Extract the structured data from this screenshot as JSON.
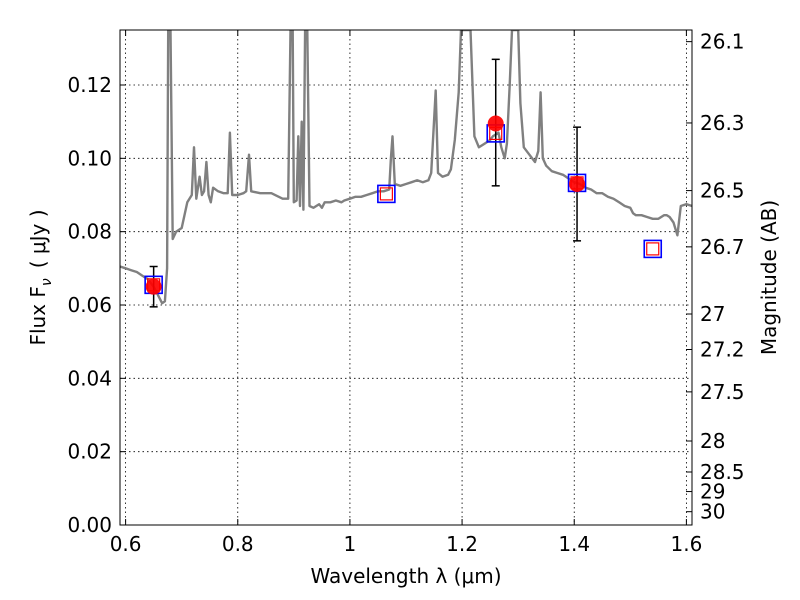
{
  "chart_data": {
    "type": "scatter",
    "xlabel": "Wavelength  λ (μm)",
    "ylabel": "Flux  F",
    "ylabel_sub": "ν",
    "ylabel_unit": "(  μJy )",
    "y2label": "Magnitude (AB)",
    "xlim": [
      0.59,
      1.61
    ],
    "ylim": [
      0.0,
      0.135
    ],
    "grid": true,
    "x_ticks": [
      {
        "value": 0.6,
        "label": "0.6"
      },
      {
        "value": 0.8,
        "label": "0.8"
      },
      {
        "value": 1.0,
        "label": "1"
      },
      {
        "value": 1.2,
        "label": "1.2"
      },
      {
        "value": 1.4,
        "label": "1.4"
      },
      {
        "value": 1.6,
        "label": "1.6"
      }
    ],
    "y_ticks": [
      {
        "value": 0.0,
        "label": "0.00"
      },
      {
        "value": 0.02,
        "label": "0.02"
      },
      {
        "value": 0.04,
        "label": "0.04"
      },
      {
        "value": 0.06,
        "label": "0.06"
      },
      {
        "value": 0.08,
        "label": "0.08"
      },
      {
        "value": 0.1,
        "label": "0.10"
      },
      {
        "value": 0.12,
        "label": "0.12"
      }
    ],
    "y2_ticks": [
      {
        "value": 26.1,
        "label": "26.1"
      },
      {
        "value": 26.3,
        "label": "26.3"
      },
      {
        "value": 26.5,
        "label": "26.5"
      },
      {
        "value": 26.7,
        "label": "26.7"
      },
      {
        "value": 27.0,
        "label": "27"
      },
      {
        "value": 27.2,
        "label": "27.2"
      },
      {
        "value": 27.5,
        "label": "27.5"
      },
      {
        "value": 28.0,
        "label": "28"
      },
      {
        "value": 28.5,
        "label": "28.5"
      },
      {
        "value": 29.0,
        "label": "29"
      },
      {
        "value": 30.0,
        "label": "30"
      }
    ],
    "spectrum": {
      "color": "#808080",
      "points": [
        [
          0.59,
          0.0705
        ],
        [
          0.6,
          0.07
        ],
        [
          0.61,
          0.0695
        ],
        [
          0.62,
          0.069
        ],
        [
          0.63,
          0.068
        ],
        [
          0.64,
          0.067
        ],
        [
          0.65,
          0.065
        ],
        [
          0.66,
          0.062
        ],
        [
          0.665,
          0.0605
        ],
        [
          0.67,
          0.061
        ],
        [
          0.674,
          0.07
        ],
        [
          0.676,
          0.135
        ],
        [
          0.68,
          0.135
        ],
        [
          0.684,
          0.078
        ],
        [
          0.69,
          0.08
        ],
        [
          0.7,
          0.081
        ],
        [
          0.71,
          0.088
        ],
        [
          0.718,
          0.09
        ],
        [
          0.722,
          0.103
        ],
        [
          0.726,
          0.089
        ],
        [
          0.732,
          0.095
        ],
        [
          0.736,
          0.09
        ],
        [
          0.74,
          0.091
        ],
        [
          0.744,
          0.099
        ],
        [
          0.748,
          0.09
        ],
        [
          0.752,
          0.088
        ],
        [
          0.756,
          0.092
        ],
        [
          0.765,
          0.091
        ],
        [
          0.775,
          0.0905
        ],
        [
          0.782,
          0.0905
        ],
        [
          0.786,
          0.107
        ],
        [
          0.79,
          0.09
        ],
        [
          0.8,
          0.09
        ],
        [
          0.81,
          0.0905
        ],
        [
          0.815,
          0.091
        ],
        [
          0.82,
          0.101
        ],
        [
          0.824,
          0.091
        ],
        [
          0.84,
          0.0905
        ],
        [
          0.86,
          0.0905
        ],
        [
          0.88,
          0.089
        ],
        [
          0.89,
          0.089
        ],
        [
          0.894,
          0.135
        ],
        [
          0.898,
          0.135
        ],
        [
          0.9,
          0.088
        ],
        [
          0.905,
          0.0885
        ],
        [
          0.908,
          0.106
        ],
        [
          0.911,
          0.087
        ],
        [
          0.914,
          0.11
        ],
        [
          0.917,
          0.086
        ],
        [
          0.92,
          0.135
        ],
        [
          0.924,
          0.135
        ],
        [
          0.928,
          0.087
        ],
        [
          0.935,
          0.0865
        ],
        [
          0.945,
          0.0875
        ],
        [
          0.95,
          0.0865
        ],
        [
          0.955,
          0.088
        ],
        [
          0.965,
          0.088
        ],
        [
          0.975,
          0.0885
        ],
        [
          0.985,
          0.088
        ],
        [
          0.99,
          0.0885
        ],
        [
          1.0,
          0.089
        ],
        [
          1.01,
          0.0895
        ],
        [
          1.02,
          0.0895
        ],
        [
          1.03,
          0.09
        ],
        [
          1.04,
          0.0905
        ],
        [
          1.05,
          0.091
        ],
        [
          1.06,
          0.091
        ],
        [
          1.07,
          0.0915
        ],
        [
          1.073,
          0.1
        ],
        [
          1.076,
          0.106
        ],
        [
          1.08,
          0.093
        ],
        [
          1.09,
          0.0925
        ],
        [
          1.1,
          0.093
        ],
        [
          1.11,
          0.0935
        ],
        [
          1.12,
          0.094
        ],
        [
          1.13,
          0.0935
        ],
        [
          1.14,
          0.094
        ],
        [
          1.145,
          0.096
        ],
        [
          1.15,
          0.11
        ],
        [
          1.153,
          0.1185
        ],
        [
          1.157,
          0.096
        ],
        [
          1.165,
          0.095
        ],
        [
          1.175,
          0.0955
        ],
        [
          1.18,
          0.097
        ],
        [
          1.187,
          0.105
        ],
        [
          1.194,
          0.118
        ],
        [
          1.198,
          0.135
        ],
        [
          1.215,
          0.135
        ],
        [
          1.222,
          0.106
        ],
        [
          1.23,
          0.103
        ],
        [
          1.24,
          0.104
        ],
        [
          1.25,
          0.105
        ],
        [
          1.255,
          0.106
        ],
        [
          1.265,
          0.107
        ],
        [
          1.27,
          0.103
        ],
        [
          1.276,
          0.1
        ],
        [
          1.28,
          0.104
        ],
        [
          1.285,
          0.12
        ],
        [
          1.289,
          0.135
        ],
        [
          1.3,
          0.135
        ],
        [
          1.304,
          0.115
        ],
        [
          1.31,
          0.103
        ],
        [
          1.32,
          0.101
        ],
        [
          1.33,
          0.099
        ],
        [
          1.336,
          0.102
        ],
        [
          1.34,
          0.118
        ],
        [
          1.344,
          0.1
        ],
        [
          1.35,
          0.098
        ],
        [
          1.36,
          0.0965
        ],
        [
          1.37,
          0.096
        ],
        [
          1.38,
          0.0955
        ],
        [
          1.39,
          0.0945
        ],
        [
          1.4,
          0.0935
        ],
        [
          1.41,
          0.093
        ],
        [
          1.42,
          0.092
        ],
        [
          1.43,
          0.0915
        ],
        [
          1.44,
          0.0905
        ],
        [
          1.45,
          0.0905
        ],
        [
          1.46,
          0.0895
        ],
        [
          1.47,
          0.089
        ],
        [
          1.48,
          0.088
        ],
        [
          1.49,
          0.087
        ],
        [
          1.5,
          0.0865
        ],
        [
          1.505,
          0.085
        ],
        [
          1.51,
          0.0845
        ],
        [
          1.52,
          0.0845
        ],
        [
          1.53,
          0.084
        ],
        [
          1.54,
          0.0835
        ],
        [
          1.55,
          0.0835
        ],
        [
          1.56,
          0.0845
        ],
        [
          1.565,
          0.0845
        ],
        [
          1.57,
          0.084
        ],
        [
          1.577,
          0.0825
        ],
        [
          1.584,
          0.079
        ],
        [
          1.59,
          0.087
        ],
        [
          1.6,
          0.0875
        ],
        [
          1.61,
          0.087
        ]
      ]
    },
    "observed": {
      "color": "#ff0000",
      "error_color": "#000000",
      "points": [
        {
          "x": 0.65,
          "y": 0.065,
          "yerr_low": 0.0595,
          "yerr_high": 0.0705
        },
        {
          "x": 1.26,
          "y": 0.1095,
          "yerr_low": 0.0925,
          "yerr_high": 0.127
        },
        {
          "x": 1.405,
          "y": 0.093,
          "yerr_low": 0.0775,
          "yerr_high": 0.1085
        }
      ]
    },
    "model": {
      "outer_color": "#0000ff",
      "inner_color": "#ff0000",
      "points": [
        {
          "x": 0.65,
          "y": 0.0655
        },
        {
          "x": 1.065,
          "y": 0.0903
        },
        {
          "x": 1.26,
          "y": 0.1068
        },
        {
          "x": 1.405,
          "y": 0.0933
        },
        {
          "x": 1.54,
          "y": 0.0753
        }
      ]
    }
  }
}
